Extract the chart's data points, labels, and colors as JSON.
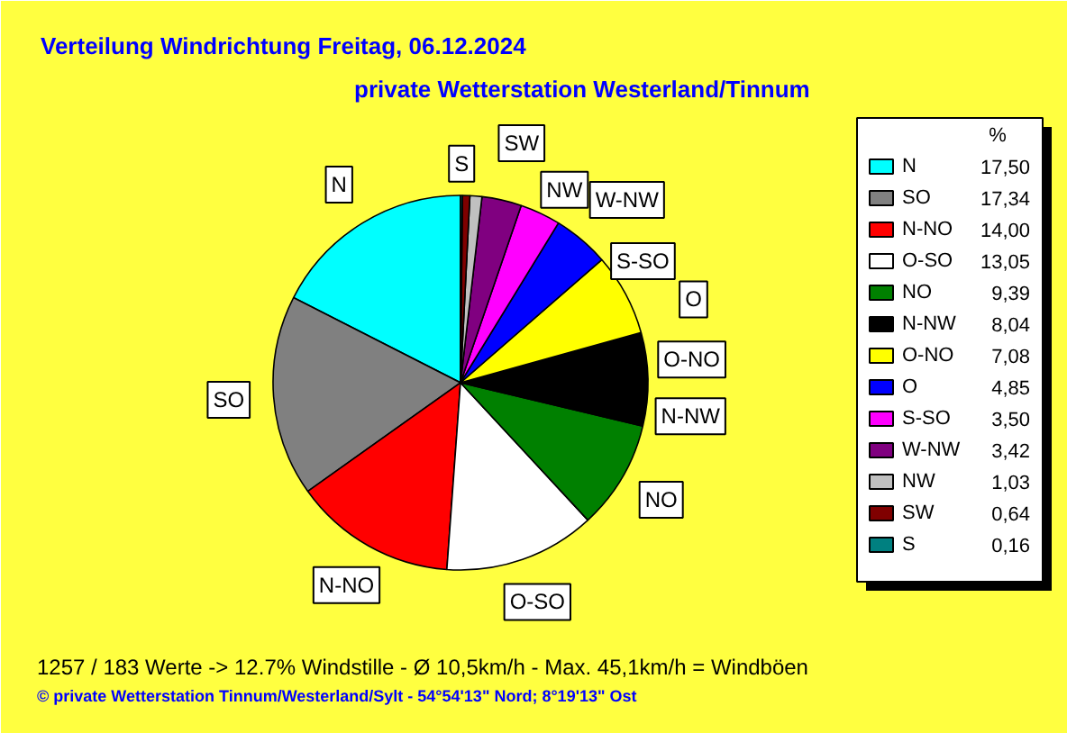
{
  "chart_data": {
    "type": "pie",
    "title": "Verteilung Windrichtung   Freitag, 06.12.2024",
    "subtitle": "private Wetterstation Westerland/Tinnum",
    "legend_title": "%",
    "categories": [
      "N",
      "SO",
      "N-NO",
      "O-SO",
      "NO",
      "N-NW",
      "O-NO",
      "O",
      "S-SO",
      "W-NW",
      "NW",
      "SW",
      "S"
    ],
    "values": [
      17.5,
      17.34,
      14.0,
      13.05,
      9.39,
      8.04,
      7.08,
      4.85,
      3.5,
      3.42,
      1.03,
      0.64,
      0.16
    ],
    "value_labels": [
      "17,50",
      "17,34",
      "14,00",
      "13,05",
      "9,39",
      "8,04",
      "7,08",
      "4,85",
      "3,50",
      "3,42",
      "1,03",
      "0,64",
      "0,16"
    ],
    "colors": [
      "#00ffff",
      "#808080",
      "#ff0000",
      "#ffffff",
      "#008000",
      "#000000",
      "#ffff00",
      "#0000ff",
      "#ff00ff",
      "#800080",
      "#c0c0c0",
      "#800000",
      "#008080"
    ],
    "data_labels": true,
    "legend": "right",
    "annotations": [
      "1257 / 183 Werte  -> 12.7% Windstille   -   Ø 10,5km/h  -  Max. 45,1km/h = Windböen",
      "© private Wetterstation Tinnum/Westerland/Sylt   -   54°54'13\" Nord; 8°19'13\" Ost"
    ]
  }
}
